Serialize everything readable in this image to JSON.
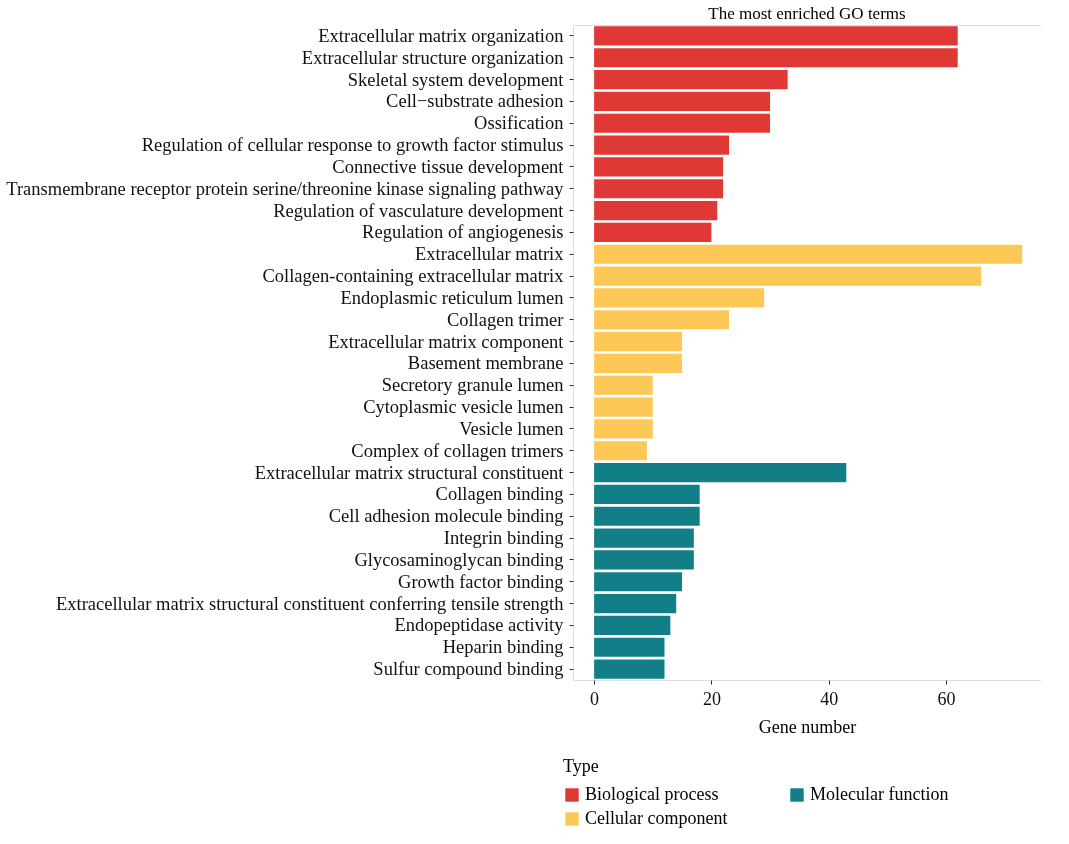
{
  "chart_data": {
    "type": "bar",
    "orientation": "horizontal",
    "title": "The most enriched GO terms",
    "xlabel": "Gene number",
    "legend_title": "Type",
    "legend": "bottom",
    "grid": false,
    "categories": [
      "Extracellular matrix organization",
      "Extracellular structure organization",
      "Skeletal system development",
      "Cell−substrate adhesion",
      "Ossification",
      "Regulation of cellular response to growth factor stimulus",
      "Connective tissue development",
      "Transmembrane receptor protein serine/threonine kinase signaling pathway",
      "Regulation of vasculature development",
      "Regulation of angiogenesis",
      "Extracellular matrix",
      "Collagen-containing extracellular matrix",
      "Endoplasmic reticulum lumen",
      "Collagen trimer",
      "Extracellular matrix component",
      "Basement membrane",
      "Secretory granule lumen",
      "Cytoplasmic vesicle lumen",
      "Vesicle lumen",
      "Complex of collagen trimers",
      "Extracellular matrix structural constituent",
      "Collagen binding",
      "Cell adhesion molecule binding",
      "Integrin binding",
      "Glycosaminoglycan binding",
      "Growth factor binding",
      "Extracellular matrix structural constituent conferring tensile strength",
      "Endopeptidase activity",
      "Heparin binding",
      "Sulfur compound binding"
    ],
    "xlim": [
      -3.6,
      76.2
    ],
    "xticks": [
      0,
      20,
      40,
      60
    ],
    "series": [
      {
        "name": "Biological process",
        "color": "#e03835",
        "values": [
          62,
          62,
          33,
          30,
          30,
          23,
          22,
          22,
          21,
          20,
          null,
          null,
          null,
          null,
          null,
          null,
          null,
          null,
          null,
          null,
          null,
          null,
          null,
          null,
          null,
          null,
          null,
          null,
          null,
          null
        ]
      },
      {
        "name": "Cellular component",
        "color": "#fdc856",
        "values": [
          null,
          null,
          null,
          null,
          null,
          null,
          null,
          null,
          null,
          null,
          73,
          66,
          29,
          23,
          15,
          15,
          10,
          10,
          10,
          9,
          null,
          null,
          null,
          null,
          null,
          null,
          null,
          null,
          null,
          null
        ]
      },
      {
        "name": "Molecular function",
        "color": "#127f88",
        "values": [
          null,
          null,
          null,
          null,
          null,
          null,
          null,
          null,
          null,
          null,
          null,
          null,
          null,
          null,
          null,
          null,
          null,
          null,
          null,
          null,
          43,
          18,
          18,
          17,
          17,
          15,
          14,
          13,
          12,
          12
        ]
      }
    ]
  }
}
